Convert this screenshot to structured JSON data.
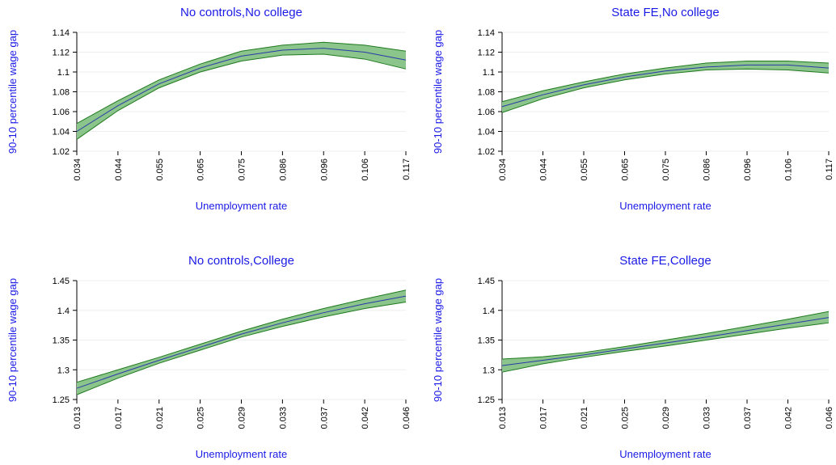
{
  "colors": {
    "band_fill": "#8cc58c",
    "band_edge": "#1f7a1f",
    "line": "#2a3aa8",
    "text_accent": "#1a1ae6",
    "grid": "#eeeeee",
    "axis": "#000000"
  },
  "chart_data": [
    {
      "type": "area",
      "title": "No controls,No college",
      "xlabel": "Unemployment rate",
      "ylabel": "90-10 percentile wage gap",
      "x": [
        "0.034",
        "0.044",
        "0.055",
        "0.065",
        "0.075",
        "0.086",
        "0.096",
        "0.106",
        "0.117"
      ],
      "ylim": [
        1.02,
        1.14
      ],
      "yticks": [
        "1.02",
        "1.04",
        "1.06",
        "1.08",
        "1.1",
        "1.12",
        "1.14"
      ],
      "grid": true,
      "series": [
        {
          "role": "estimate",
          "values": [
            1.04,
            1.066,
            1.088,
            1.104,
            1.116,
            1.122,
            1.124,
            1.12,
            1.112
          ]
        },
        {
          "role": "upper",
          "values": [
            1.048,
            1.071,
            1.092,
            1.108,
            1.121,
            1.127,
            1.13,
            1.127,
            1.121
          ]
        },
        {
          "role": "lower",
          "values": [
            1.032,
            1.061,
            1.084,
            1.1,
            1.111,
            1.117,
            1.118,
            1.113,
            1.103
          ]
        }
      ]
    },
    {
      "type": "area",
      "title": "State FE,No college",
      "xlabel": "Unemployment rate",
      "ylabel": "90-10 percentile wage gap",
      "x": [
        "0.034",
        "0.044",
        "0.055",
        "0.065",
        "0.075",
        "0.086",
        "0.096",
        "0.106",
        "0.117"
      ],
      "ylim": [
        1.02,
        1.14
      ],
      "yticks": [
        "1.02",
        "1.04",
        "1.06",
        "1.08",
        "1.1",
        "1.12",
        "1.14"
      ],
      "grid": true,
      "series": [
        {
          "role": "estimate",
          "values": [
            1.065,
            1.077,
            1.087,
            1.095,
            1.101,
            1.105,
            1.107,
            1.107,
            1.104
          ]
        },
        {
          "role": "upper",
          "values": [
            1.07,
            1.081,
            1.09,
            1.098,
            1.104,
            1.109,
            1.111,
            1.111,
            1.109
          ]
        },
        {
          "role": "lower",
          "values": [
            1.059,
            1.073,
            1.084,
            1.092,
            1.098,
            1.102,
            1.103,
            1.102,
            1.099
          ]
        }
      ]
    },
    {
      "type": "area",
      "title": "No controls,College",
      "xlabel": "Unemployment rate",
      "ylabel": "90-10 percentile wage gap",
      "x": [
        "0.013",
        "0.017",
        "0.021",
        "0.025",
        "0.029",
        "0.033",
        "0.037",
        "0.042",
        "0.046"
      ],
      "ylim": [
        1.25,
        1.45
      ],
      "yticks": [
        "1.25",
        "1.3",
        "1.35",
        "1.4",
        "1.45"
      ],
      "grid": true,
      "series": [
        {
          "role": "estimate",
          "values": [
            1.269,
            1.293,
            1.316,
            1.338,
            1.36,
            1.379,
            1.396,
            1.411,
            1.424
          ]
        },
        {
          "role": "upper",
          "values": [
            1.279,
            1.3,
            1.321,
            1.343,
            1.365,
            1.385,
            1.403,
            1.419,
            1.434
          ]
        },
        {
          "role": "lower",
          "values": [
            1.258,
            1.286,
            1.311,
            1.333,
            1.355,
            1.373,
            1.389,
            1.403,
            1.414
          ]
        }
      ]
    },
    {
      "type": "area",
      "title": "State FE,College",
      "xlabel": "Unemployment rate",
      "ylabel": "90-10 percentile wage gap",
      "x": [
        "0.013",
        "0.017",
        "0.021",
        "0.025",
        "0.029",
        "0.033",
        "0.037",
        "0.042",
        "0.046"
      ],
      "ylim": [
        1.25,
        1.45
      ],
      "yticks": [
        "1.25",
        "1.3",
        "1.35",
        "1.4",
        "1.45"
      ],
      "grid": true,
      "series": [
        {
          "role": "estimate",
          "values": [
            1.307,
            1.316,
            1.325,
            1.335,
            1.345,
            1.355,
            1.366,
            1.377,
            1.388
          ]
        },
        {
          "role": "upper",
          "values": [
            1.318,
            1.322,
            1.329,
            1.339,
            1.35,
            1.361,
            1.373,
            1.385,
            1.398
          ]
        },
        {
          "role": "lower",
          "values": [
            1.296,
            1.31,
            1.321,
            1.331,
            1.34,
            1.35,
            1.36,
            1.37,
            1.379
          ]
        }
      ]
    }
  ]
}
